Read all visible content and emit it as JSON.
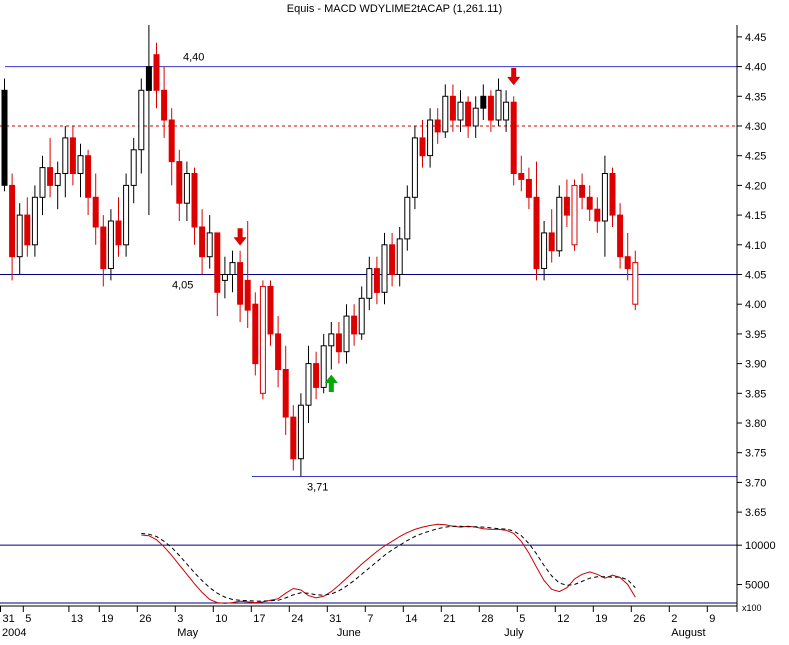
{
  "title": "Equis - MACD WDYLIME2tACAP (1,261.11)",
  "chart_data": {
    "type": "candlestick",
    "indicator_name": "MACD",
    "colors": {
      "red": "#dd0000",
      "green": "#00aa00",
      "navy": "#000080",
      "blue": "#3a3acc",
      "label_blue": "#0000bb",
      "dashed_red": "#cc0000"
    },
    "price_panel": {
      "ylim": [
        3.63,
        4.47
      ],
      "hlines": [
        {
          "name": "resistance-line-440",
          "price": 4.4,
          "x1": 5,
          "x2": 737,
          "color": "#3a3acc",
          "style": "solid",
          "label": "4,40",
          "label_x": 183,
          "label_pos": "above"
        },
        {
          "name": "dashed-level-430",
          "price": 4.3,
          "x1": 0,
          "x2": 737,
          "color": "#cc0000",
          "style": "dashed"
        },
        {
          "name": "support-line-405",
          "price": 4.05,
          "x1": 0,
          "x2": 737,
          "color": "#000080",
          "style": "solid",
          "label": "4,05",
          "label_x": 172,
          "label_pos": "below"
        },
        {
          "name": "support-line-371",
          "price": 3.71,
          "x1": 252,
          "x2": 737,
          "color": "#3a3acc",
          "style": "solid",
          "label": "3,71",
          "label_x": 307,
          "label_pos": "below"
        }
      ]
    },
    "indicator_panel": {
      "name": "MACD",
      "ylim": [
        2400,
        13200
      ],
      "hlines": [
        10000,
        2650
      ],
      "series": [
        {
          "name": "MACD",
          "color": "#cc0000",
          "style": "solid",
          "start_index": 18,
          "values": [
            11300,
            11200,
            10700,
            9800,
            8700,
            7500,
            6300,
            5100,
            4000,
            3100,
            2700,
            2600,
            2700,
            2900,
            2800,
            2700,
            2800,
            3000,
            3200,
            3900,
            4500,
            4300,
            3600,
            3300,
            3500,
            4100,
            4900,
            5800,
            6700,
            7600,
            8400,
            9200,
            9900,
            10500,
            11100,
            11600,
            12000,
            12300,
            12500,
            12650,
            12600,
            12400,
            12300,
            12400,
            12300,
            12100,
            12000,
            12000,
            11900,
            11500,
            10500,
            9000,
            7200,
            5500,
            4400,
            4100,
            4600,
            5700,
            6300,
            6600,
            6300,
            5800,
            6200,
            5900,
            5000,
            3400
          ]
        },
        {
          "name": "Signal",
          "color": "#000000",
          "style": "dashed",
          "start_index": 18,
          "values": [
            11500,
            11400,
            11100,
            10500,
            9700,
            8700,
            7600,
            6500,
            5500,
            4600,
            3900,
            3400,
            3100,
            3000,
            2950,
            2900,
            2900,
            2950,
            3000,
            3300,
            3700,
            3950,
            3900,
            3700,
            3650,
            3800,
            4200,
            4800,
            5500,
            6300,
            7100,
            7900,
            8700,
            9400,
            10000,
            10600,
            11100,
            11500,
            11800,
            12100,
            12300,
            12400,
            12400,
            12350,
            12350,
            12300,
            12200,
            12100,
            12050,
            11800,
            11200,
            10200,
            8900,
            7400,
            6100,
            5200,
            4900,
            5000,
            5400,
            5800,
            6000,
            6000,
            5950,
            5950,
            5600,
            4600
          ]
        }
      ]
    },
    "candles": [
      [
        "Mar 31",
        4.36,
        4.38,
        4.19,
        4.2,
        "b"
      ],
      [
        "Apr 1",
        4.2,
        4.22,
        4.04,
        4.08,
        "r"
      ],
      [
        "Apr 2",
        4.08,
        4.17,
        4.05,
        4.15,
        "w"
      ],
      [
        "Apr 5",
        4.15,
        4.18,
        4.08,
        4.1,
        "r"
      ],
      [
        "Apr 6",
        4.1,
        4.2,
        4.08,
        4.18,
        "w"
      ],
      [
        "Apr 7",
        4.18,
        4.25,
        4.15,
        4.23,
        "w"
      ],
      [
        "Apr 8",
        4.23,
        4.28,
        4.18,
        4.2,
        "r"
      ],
      [
        "Apr 9",
        4.2,
        4.24,
        4.16,
        4.22,
        "w"
      ],
      [
        "Apr 12",
        4.22,
        4.3,
        4.18,
        4.28,
        "w"
      ],
      [
        "Apr 13",
        4.28,
        4.3,
        4.2,
        4.22,
        "r"
      ],
      [
        "Apr 14",
        4.22,
        4.27,
        4.18,
        4.25,
        "w"
      ],
      [
        "Apr 15",
        4.25,
        4.26,
        4.15,
        4.18,
        "r"
      ],
      [
        "Apr 16",
        4.18,
        4.22,
        4.1,
        4.13,
        "r"
      ],
      [
        "Apr 19",
        4.13,
        4.15,
        4.03,
        4.06,
        "r"
      ],
      [
        "Apr 20",
        4.06,
        4.16,
        4.04,
        4.14,
        "w"
      ],
      [
        "Apr 21",
        4.14,
        4.18,
        4.08,
        4.1,
        "r"
      ],
      [
        "Apr 22",
        4.1,
        4.22,
        4.08,
        4.2,
        "w"
      ],
      [
        "Apr 23",
        4.2,
        4.28,
        4.17,
        4.26,
        "w"
      ],
      [
        "Apr 26",
        4.26,
        4.38,
        4.22,
        4.36,
        "w"
      ],
      [
        "Apr 27",
        4.36,
        4.47,
        4.15,
        4.4,
        "b"
      ],
      [
        "Apr 28",
        4.42,
        4.44,
        4.33,
        4.36,
        "r"
      ],
      [
        "Apr 29",
        4.36,
        4.4,
        4.28,
        4.31,
        "r"
      ],
      [
        "Apr 30",
        4.31,
        4.33,
        4.2,
        4.24,
        "r"
      ],
      [
        "May 3",
        4.24,
        4.26,
        4.14,
        4.17,
        "r"
      ],
      [
        "May 4",
        4.17,
        4.24,
        4.14,
        4.22,
        "w"
      ],
      [
        "May 5",
        4.22,
        4.23,
        4.1,
        4.13,
        "r"
      ],
      [
        "May 6",
        4.13,
        4.16,
        4.05,
        4.08,
        "r"
      ],
      [
        "May 7",
        4.08,
        4.15,
        4.06,
        4.12,
        "w"
      ],
      [
        "May 10",
        4.12,
        4.12,
        3.98,
        4.02,
        "r"
      ],
      [
        "May 11",
        4.04,
        4.08,
        4.01,
        4.05,
        "w"
      ],
      [
        "May 12",
        4.05,
        4.09,
        4.02,
        4.07,
        "w"
      ],
      [
        "May 13",
        4.07,
        4.09,
        3.97,
        4.0,
        "r"
      ],
      [
        "May 14",
        4.04,
        4.14,
        3.96,
        3.99,
        "r"
      ],
      [
        "May 17",
        4.0,
        4.02,
        3.88,
        3.9,
        "r"
      ],
      [
        "May 18",
        3.85,
        4.04,
        3.84,
        4.03,
        "rh"
      ],
      [
        "May 19",
        4.03,
        4.04,
        3.93,
        3.95,
        "r"
      ],
      [
        "May 20",
        3.95,
        3.98,
        3.86,
        3.89,
        "r"
      ],
      [
        "May 21",
        3.89,
        3.93,
        3.78,
        3.81,
        "r"
      ],
      [
        "May 24",
        3.81,
        3.83,
        3.72,
        3.74,
        "r"
      ],
      [
        "May 25",
        3.74,
        3.85,
        3.71,
        3.83,
        "w"
      ],
      [
        "May 26",
        3.83,
        3.93,
        3.8,
        3.9,
        "w"
      ],
      [
        "May 27",
        3.9,
        3.92,
        3.84,
        3.86,
        "r"
      ],
      [
        "May 28",
        3.86,
        3.95,
        3.85,
        3.93,
        "w"
      ],
      [
        "May 31",
        3.93,
        3.97,
        3.89,
        3.95,
        "w"
      ],
      [
        "Jun 1",
        3.95,
        3.97,
        3.9,
        3.92,
        "r"
      ],
      [
        "Jun 2",
        3.92,
        4.0,
        3.9,
        3.98,
        "w"
      ],
      [
        "Jun 3",
        3.98,
        4.0,
        3.93,
        3.95,
        "r"
      ],
      [
        "Jun 4",
        3.95,
        4.03,
        3.94,
        4.01,
        "w"
      ],
      [
        "Jun 7",
        4.01,
        4.08,
        3.99,
        4.06,
        "w"
      ],
      [
        "Jun 8",
        4.06,
        4.08,
        4.0,
        4.02,
        "r"
      ],
      [
        "Jun 9",
        4.02,
        4.12,
        4.0,
        4.1,
        "w"
      ],
      [
        "Jun 10",
        4.1,
        4.12,
        4.03,
        4.05,
        "r"
      ],
      [
        "Jun 11",
        4.05,
        4.13,
        4.03,
        4.11,
        "w"
      ],
      [
        "Jun 14",
        4.11,
        4.2,
        4.09,
        4.18,
        "w"
      ],
      [
        "Jun 15",
        4.18,
        4.3,
        4.16,
        4.28,
        "w"
      ],
      [
        "Jun 16",
        4.28,
        4.31,
        4.23,
        4.25,
        "r"
      ],
      [
        "Jun 17",
        4.25,
        4.33,
        4.23,
        4.31,
        "w"
      ],
      [
        "Jun 18",
        4.31,
        4.33,
        4.27,
        4.29,
        "r"
      ],
      [
        "Jun 21",
        4.29,
        4.37,
        4.28,
        4.35,
        "w"
      ],
      [
        "Jun 22",
        4.35,
        4.37,
        4.29,
        4.31,
        "r"
      ],
      [
        "Jun 23",
        4.31,
        4.36,
        4.29,
        4.34,
        "w"
      ],
      [
        "Jun 24",
        4.34,
        4.35,
        4.28,
        4.3,
        "r"
      ],
      [
        "Jun 25",
        4.3,
        4.35,
        4.28,
        4.33,
        "w"
      ],
      [
        "Jun 28",
        4.33,
        4.37,
        4.31,
        4.35,
        "b"
      ],
      [
        "Jun 29",
        4.35,
        4.36,
        4.29,
        4.31,
        "r"
      ],
      [
        "Jun 30",
        4.31,
        4.38,
        4.3,
        4.36,
        "w"
      ],
      [
        "Jul 1",
        4.31,
        4.36,
        4.29,
        4.34,
        "w"
      ],
      [
        "Jul 2",
        4.34,
        4.35,
        4.2,
        4.22,
        "r"
      ],
      [
        "Jul 5",
        4.22,
        4.25,
        4.19,
        4.21,
        "r"
      ],
      [
        "Jul 6",
        4.21,
        4.23,
        4.16,
        4.18,
        "r"
      ],
      [
        "Jul 7",
        4.18,
        4.24,
        4.04,
        4.06,
        "r"
      ],
      [
        "Jul 8",
        4.06,
        4.14,
        4.04,
        4.12,
        "w"
      ],
      [
        "Jul 9",
        4.12,
        4.16,
        4.07,
        4.09,
        "r"
      ],
      [
        "Jul 12",
        4.09,
        4.2,
        4.08,
        4.18,
        "w"
      ],
      [
        "Jul 13",
        4.18,
        4.21,
        4.13,
        4.15,
        "r"
      ],
      [
        "Jul 14",
        4.1,
        4.21,
        4.09,
        4.2,
        "rh"
      ],
      [
        "Jul 15",
        4.2,
        4.22,
        4.16,
        4.18,
        "r"
      ],
      [
        "Jul 16",
        4.18,
        4.2,
        4.14,
        4.16,
        "r"
      ],
      [
        "Jul 19",
        4.16,
        4.18,
        4.12,
        4.14,
        "r"
      ],
      [
        "Jul 20",
        4.14,
        4.25,
        4.08,
        4.22,
        "w"
      ],
      [
        "Jul 21",
        4.22,
        4.23,
        4.13,
        4.15,
        "r"
      ],
      [
        "Jul 22",
        4.15,
        4.17,
        4.06,
        4.08,
        "r"
      ],
      [
        "Jul 23",
        4.08,
        4.12,
        4.04,
        4.06,
        "r"
      ],
      [
        "Jul 26",
        4.0,
        4.09,
        3.99,
        4.07,
        "rh"
      ]
    ],
    "arrows": [
      {
        "index": 31,
        "dir": "down",
        "color": "red",
        "price_tip": 4.1
      },
      {
        "index": 67,
        "dir": "down",
        "color": "red",
        "price_tip": 4.37
      },
      {
        "index": 43,
        "dir": "up",
        "color": "green",
        "price_tip": 3.88
      }
    ],
    "price_axis_ticks": [
      "4.45",
      "4.40",
      "4.35",
      "4.30",
      "4.25",
      "4.20",
      "4.15",
      "4.10",
      "4.05",
      "4.00",
      "3.95",
      "3.90",
      "3.85",
      "3.80",
      "3.75",
      "3.70",
      "3.65"
    ],
    "indicator_axis_ticks": [
      10000,
      5000
    ],
    "multiplier_label": "x100",
    "x_axis": {
      "year": "2004",
      "day_labels": [
        {
          "t": "31",
          "i": 0
        },
        {
          "t": "5",
          "i": 3
        },
        {
          "t": "13",
          "i": 9
        },
        {
          "t": "19",
          "i": 13
        },
        {
          "t": "26",
          "i": 18
        },
        {
          "t": "3",
          "i": 23
        },
        {
          "t": "10",
          "i": 28
        },
        {
          "t": "17",
          "i": 33
        },
        {
          "t": "24",
          "i": 38
        },
        {
          "t": "31",
          "i": 43
        },
        {
          "t": "7",
          "i": 48
        },
        {
          "t": "14",
          "i": 53
        },
        {
          "t": "21",
          "i": 58
        },
        {
          "t": "28",
          "i": 63
        },
        {
          "t": "5",
          "i": 68
        },
        {
          "t": "12",
          "i": 73
        },
        {
          "t": "19",
          "i": 78
        },
        {
          "t": "26",
          "i": 83
        },
        {
          "t": "2",
          "i": 88
        },
        {
          "t": "9",
          "i": 93
        }
      ],
      "month_labels": [
        {
          "t": "May",
          "i": 23
        },
        {
          "t": "June",
          "i": 44
        },
        {
          "t": "July",
          "i": 66
        },
        {
          "t": "August",
          "i": 88
        }
      ]
    },
    "layout": {
      "left": 2,
      "spacing": 7.6,
      "candle_w": 5,
      "axis_x": 737,
      "price_top": 25,
      "price_bottom": 524,
      "ind_top": 520,
      "ind_bottom": 605,
      "xaxis_y": 606
    }
  }
}
